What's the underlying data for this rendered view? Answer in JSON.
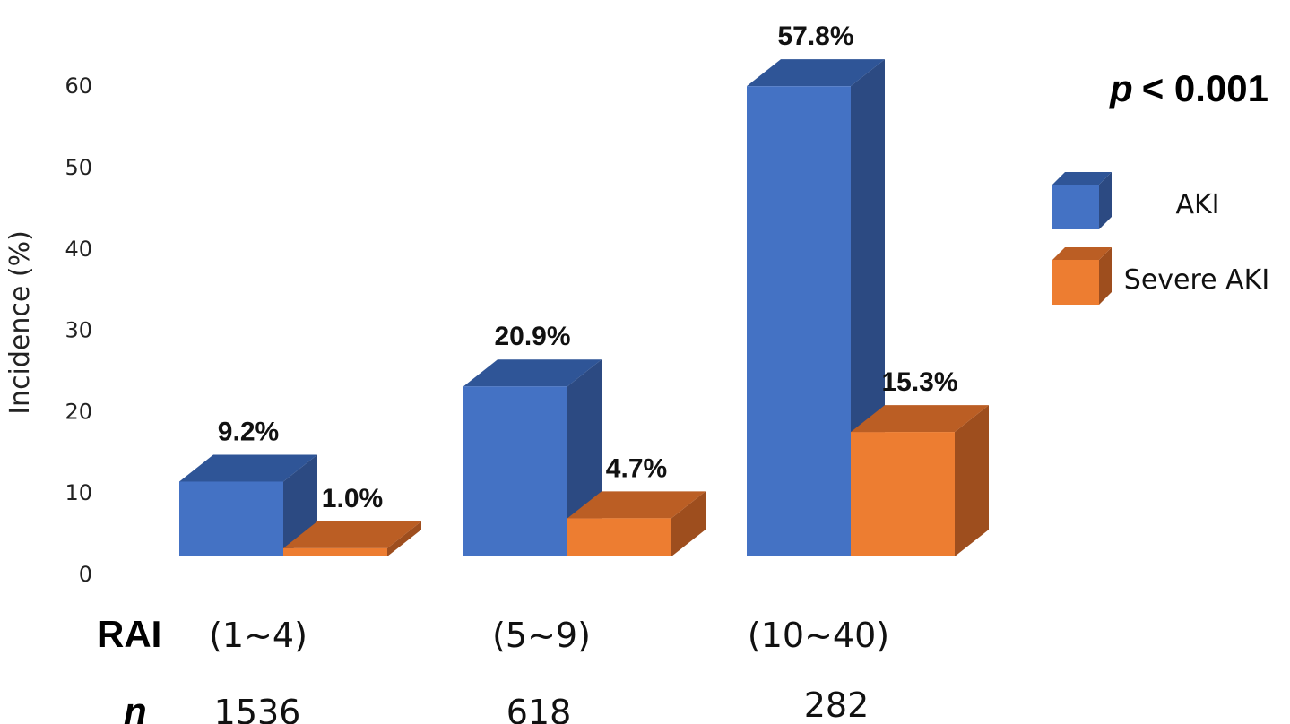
{
  "chart_data": {
    "type": "bar",
    "ylabel": "Incidence (%)",
    "yticks": [
      0,
      10,
      20,
      30,
      40,
      50,
      60
    ],
    "ylim": [
      0,
      60
    ],
    "grid": false,
    "row_label": "RAI",
    "n_label": "n",
    "categories": [
      "(1~4)",
      "(5~9)",
      "(10~40)"
    ],
    "n_values": [
      "1536",
      "618",
      "282"
    ],
    "series": [
      {
        "name": "AKI",
        "values": [
          9.2,
          20.9,
          57.8
        ],
        "labels": [
          "9.2%",
          "20.9%",
          "57.8%"
        ],
        "color": "#4472C4",
        "top_color": "#2F5597",
        "side_color": "#2C4A82"
      },
      {
        "name": "Severe AKI",
        "values": [
          1.0,
          4.7,
          15.3
        ],
        "labels": [
          "1.0%",
          "4.7%",
          "15.3%"
        ],
        "color": "#ED7D31",
        "top_color": "#BB5E24",
        "side_color": "#9E4E1E"
      }
    ],
    "legend_position": "right",
    "annotation": {
      "prefix": "p",
      "text": "< 0.001"
    }
  }
}
